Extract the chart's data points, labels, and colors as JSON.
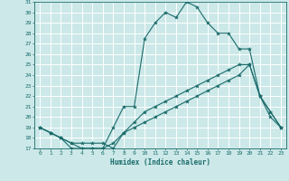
{
  "xlabel": "Humidex (Indice chaleur)",
  "xlim": [
    -0.5,
    23.5
  ],
  "ylim": [
    17,
    31
  ],
  "xticks": [
    0,
    1,
    2,
    3,
    4,
    5,
    6,
    7,
    8,
    9,
    10,
    11,
    12,
    13,
    14,
    15,
    16,
    17,
    18,
    19,
    20,
    21,
    22,
    23
  ],
  "yticks": [
    17,
    18,
    19,
    20,
    21,
    22,
    23,
    24,
    25,
    26,
    27,
    28,
    29,
    30,
    31
  ],
  "bg_color": "#cce8e8",
  "line_color": "#1a6b6b",
  "grid_color": "#ffffff",
  "curve1_x": [
    0,
    1,
    2,
    3,
    4,
    5,
    6,
    7,
    8,
    9,
    10,
    11,
    12,
    13,
    14,
    15,
    16,
    17,
    18,
    19,
    20,
    21,
    22,
    23
  ],
  "curve1_y": [
    19,
    18.5,
    18,
    17,
    17,
    17,
    17,
    19,
    21,
    21,
    27.5,
    29,
    30,
    29.5,
    31,
    30.5,
    29,
    28,
    28,
    26.5,
    26.5,
    22,
    20,
    19
  ],
  "curve2_x": [
    0,
    1,
    2,
    3,
    4,
    5,
    6,
    7,
    8,
    9,
    10,
    11,
    12,
    13,
    14,
    15,
    16,
    17,
    18,
    19,
    20,
    21,
    22,
    23
  ],
  "curve2_y": [
    19,
    18.5,
    18,
    17.5,
    17.5,
    17.5,
    17.5,
    17,
    18.5,
    19.5,
    20.5,
    21,
    21.5,
    22,
    22.5,
    23,
    23.5,
    24,
    24.5,
    25,
    25,
    22,
    20.5,
    19
  ],
  "curve3_x": [
    0,
    1,
    2,
    3,
    4,
    5,
    6,
    7,
    8,
    9,
    10,
    11,
    12,
    13,
    14,
    15,
    16,
    17,
    18,
    19,
    20,
    21,
    22,
    23
  ],
  "curve3_y": [
    19,
    18.5,
    18,
    17.5,
    17,
    17,
    17,
    17.5,
    18.5,
    19,
    19.5,
    20,
    20.5,
    21,
    21.5,
    22,
    22.5,
    23,
    23.5,
    24,
    25,
    22,
    20.5,
    19
  ]
}
